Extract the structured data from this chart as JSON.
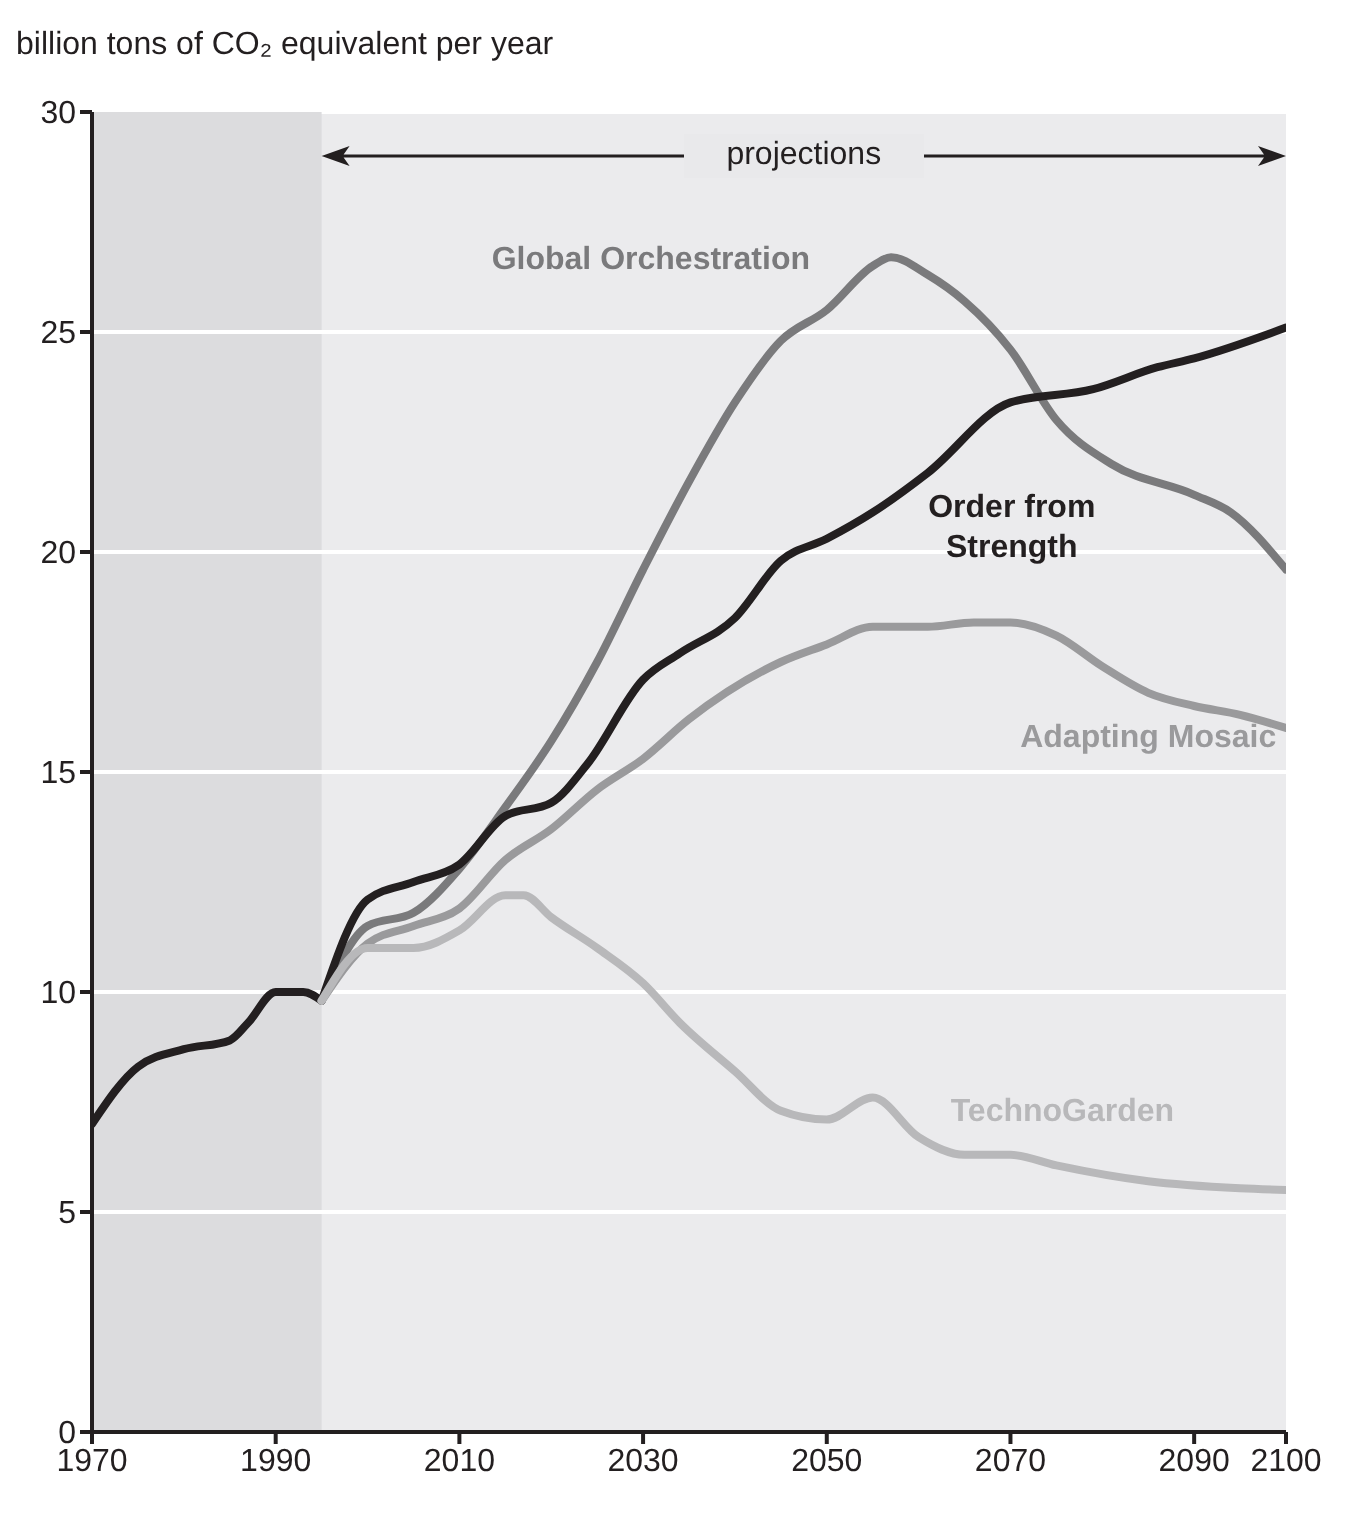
{
  "chart_data": {
    "type": "line",
    "ylabel": "billion tons of CO₂ equivalent per year",
    "xlim": [
      1970,
      2100
    ],
    "xticks": [
      1970,
      1990,
      2010,
      2030,
      2050,
      2070,
      2090,
      2100
    ],
    "ylim": [
      0,
      30
    ],
    "yticks": [
      0,
      5,
      10,
      15,
      20,
      25,
      30
    ],
    "grid": "y",
    "marker": "none",
    "line_style": "solid",
    "annotations": [
      "projections"
    ],
    "bands": [
      {
        "axis": "x",
        "from": 1970,
        "to": 1995,
        "color": "#dcdcde"
      }
    ],
    "series": [
      {
        "color": "#231f20",
        "x": [
          1970,
          1975,
          1980,
          1985,
          1987,
          1990,
          1993,
          1995
        ],
        "values": [
          7.0,
          8.3,
          8.7,
          8.9,
          9.3,
          10.0,
          10.0,
          9.8
        ]
      },
      {
        "name": "Global Orchestration",
        "color": "#7a7a7c",
        "x": [
          1995,
          2000,
          2005,
          2010,
          2015,
          2020,
          2025,
          2030,
          2035,
          2040,
          2045,
          2050,
          2055,
          2057,
          2061,
          2065,
          2070,
          2075,
          2081,
          2090,
          2094,
          2100
        ],
        "values": [
          9.8,
          11.5,
          11.8,
          12.8,
          14.2,
          15.7,
          17.5,
          19.6,
          21.6,
          23.4,
          24.8,
          25.5,
          26.5,
          26.7,
          26.3,
          25.7,
          24.6,
          23.0,
          22.0,
          21.3,
          20.9,
          19.6
        ]
      },
      {
        "name": "Order from Strength",
        "color": "#231f20",
        "x": [
          1995,
          2000,
          2005,
          2010,
          2015,
          2020,
          2024,
          2030,
          2034,
          2040,
          2045,
          2050,
          2055,
          2061,
          2070,
          2079,
          2086,
          2090,
          2100
        ],
        "values": [
          9.8,
          12.1,
          12.5,
          12.9,
          14.0,
          14.3,
          15.2,
          17.1,
          17.7,
          18.5,
          19.8,
          20.3,
          20.9,
          21.8,
          23.4,
          23.7,
          24.2,
          24.4,
          25.1
        ]
      },
      {
        "name": "Adapting Mosaic",
        "color": "#9a9a9c",
        "x": [
          1995,
          2000,
          2005,
          2010,
          2015,
          2020,
          2025,
          2030,
          2035,
          2045,
          2050,
          2055,
          2061,
          2066,
          2070,
          2075,
          2080,
          2085,
          2090,
          2095,
          2100
        ],
        "values": [
          9.8,
          11.1,
          11.5,
          11.9,
          13.0,
          13.7,
          14.6,
          15.3,
          16.2,
          17.5,
          17.9,
          18.3,
          18.3,
          18.4,
          18.4,
          18.1,
          17.4,
          16.8,
          16.5,
          16.3,
          16.0
        ]
      },
      {
        "name": "TechnoGarden",
        "color": "#b8b8ba",
        "x": [
          1995,
          2000,
          2005,
          2010,
          2015,
          2017,
          2020,
          2025,
          2030,
          2034,
          2040,
          2045,
          2050,
          2055,
          2060,
          2065,
          2070,
          2075,
          2085,
          2095,
          2100
        ],
        "values": [
          9.8,
          11.0,
          11.0,
          11.4,
          12.2,
          12.2,
          11.7,
          11.0,
          10.2,
          9.3,
          8.2,
          7.3,
          7.1,
          7.6,
          6.7,
          6.3,
          6.3,
          6.06,
          5.7,
          5.54,
          5.5
        ]
      }
    ]
  }
}
